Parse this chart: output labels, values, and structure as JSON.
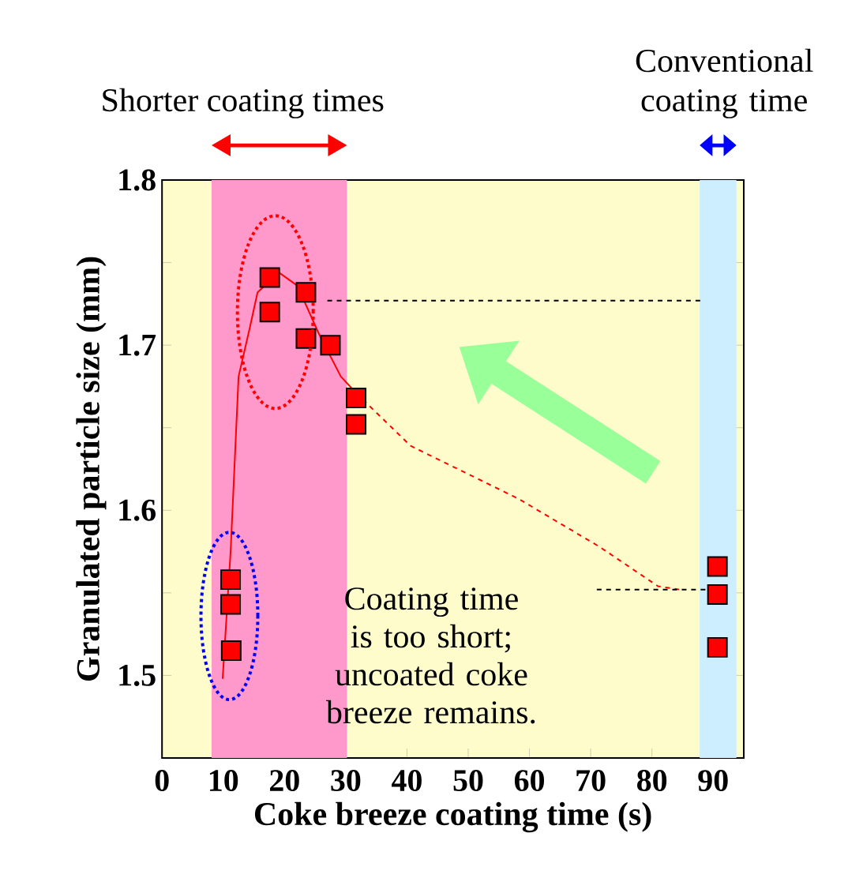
{
  "chart_data": {
    "type": "scatter",
    "xlabel": "Coke breeze coating time (s)",
    "ylabel": "Granulated particle size (mm)",
    "xlim": [
      0,
      95
    ],
    "ylim": [
      1.45,
      1.8
    ],
    "xticks": [
      0,
      10,
      20,
      30,
      40,
      50,
      60,
      70,
      80,
      90
    ],
    "yticks": [
      1.5,
      {
        "value": 1.55,
        "label": null
      },
      1.6,
      {
        "value": 1.65,
        "label": null
      },
      1.7,
      {
        "value": 1.75,
        "label": null
      },
      1.8
    ],
    "marker": "square",
    "series": [
      {
        "color": "#ff0000",
        "x": [
          17.6,
          17.6,
          23.5,
          23.5,
          27.5,
          31.7,
          31.7,
          11.2,
          11.2,
          11.3,
          90.7,
          90.7,
          90.7
        ],
        "values": [
          1.741,
          1.72,
          1.732,
          1.704,
          1.7,
          1.668,
          1.652,
          1.558,
          1.543,
          1.515,
          1.566,
          1.549,
          1.517
        ]
      },
      {
        "type": "line",
        "color": "#ff0000",
        "line_style": "solid",
        "marker": "none",
        "x": [
          9.9,
          11.2,
          12.5,
          14.3,
          15.6,
          19.1,
          22.1,
          25.6,
          29.2,
          31.7
        ],
        "values": [
          1.498,
          1.575,
          1.681,
          1.71,
          1.732,
          1.744,
          1.736,
          1.707,
          1.681,
          1.671
        ]
      },
      {
        "type": "line",
        "color": "#ff0000",
        "line_style": "dashed",
        "marker": "none",
        "x": [
          31.7,
          40.6,
          58.2,
          71.4,
          81.0,
          84.5
        ],
        "values": [
          1.671,
          1.639,
          1.607,
          1.578,
          1.554,
          1.552
        ]
      },
      {
        "type": "line",
        "color": "#000000",
        "line_style": "dashed",
        "marker": "none",
        "x": [
          27.0,
          88.0
        ],
        "values": [
          1.727,
          1.727
        ]
      },
      {
        "type": "line",
        "color": "#000000",
        "line_style": "dashed",
        "marker": "none",
        "x": [
          71.0,
          91.0
        ],
        "values": [
          1.552,
          1.552
        ]
      }
    ],
    "bands": [
      {
        "axis": "x",
        "from": 8.1,
        "to": 30.2,
        "label": "Shorter coating times",
        "color": "#ff99cc"
      },
      {
        "axis": "x",
        "from": 87.8,
        "to": 93.8,
        "label": "Conventional coating time",
        "color": "#cceeff"
      }
    ],
    "annotations": [
      "Coating time is too short; uncoated coke breeze remains."
    ]
  }
}
